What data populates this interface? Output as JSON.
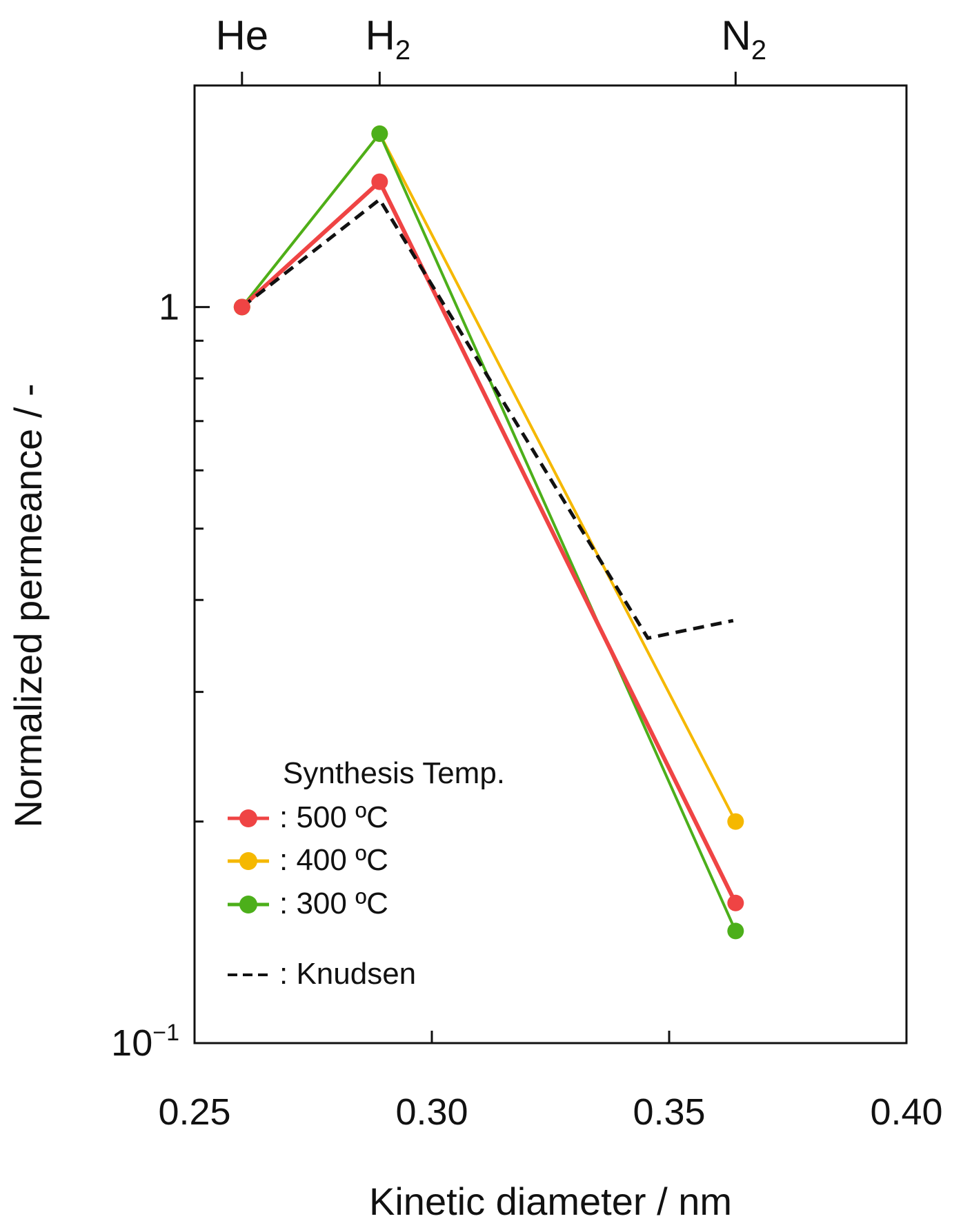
{
  "chart_data": {
    "type": "line",
    "xlabel": "Kinetic diameter / nm",
    "ylabel": "Normalized permeance / -",
    "x_scale": "linear",
    "y_scale": "log",
    "xlim": [
      0.25,
      0.4
    ],
    "ylim": [
      0.1,
      2.0
    ],
    "x_ticks": [
      {
        "value": 0.25,
        "label": "0.25"
      },
      {
        "value": 0.3,
        "label": "0.30"
      },
      {
        "value": 0.35,
        "label": "0.35"
      },
      {
        "value": 0.4,
        "label": "0.40"
      }
    ],
    "y_major_ticks": [
      {
        "value": 0.1,
        "base": "10",
        "exp": "−1"
      },
      {
        "value": 1,
        "base": "1",
        "exp": ""
      }
    ],
    "y_minor_ticks": [
      0.2,
      0.3,
      0.4,
      0.5,
      0.6,
      0.7,
      0.8,
      0.9
    ],
    "gases": [
      {
        "x": 0.26,
        "base": "He",
        "sub": ""
      },
      {
        "x": 0.289,
        "base": "H",
        "sub": "2"
      },
      {
        "x": 0.364,
        "base": "N",
        "sub": "2"
      }
    ],
    "series": [
      {
        "name": "500 ºC",
        "color": "#ef4444",
        "x": [
          0.26,
          0.289,
          0.364
        ],
        "y": [
          1.0,
          1.48,
          0.155
        ]
      },
      {
        "name": "400 ºC",
        "color": "#f5b800",
        "x": [
          0.26,
          0.289,
          0.364
        ],
        "y": [
          1.0,
          1.72,
          0.2
        ]
      },
      {
        "name": "300 ºC",
        "color": "#4caf1a",
        "x": [
          0.26,
          0.289,
          0.364
        ],
        "y": [
          1.0,
          1.72,
          0.142
        ]
      }
    ],
    "knudsen": {
      "name": "Knudsen",
      "color": "#111111",
      "x": [
        0.26,
        0.289,
        0.3455,
        0.3635
      ],
      "y": [
        1.0,
        1.4,
        0.355,
        0.375
      ]
    },
    "legend": {
      "title": "Synthesis Temp.",
      "entries": [
        ": 500 ºC",
        ": 400 ºC",
        ": 300 ºC",
        ": Knudsen"
      ],
      "position": "lower-left"
    }
  }
}
